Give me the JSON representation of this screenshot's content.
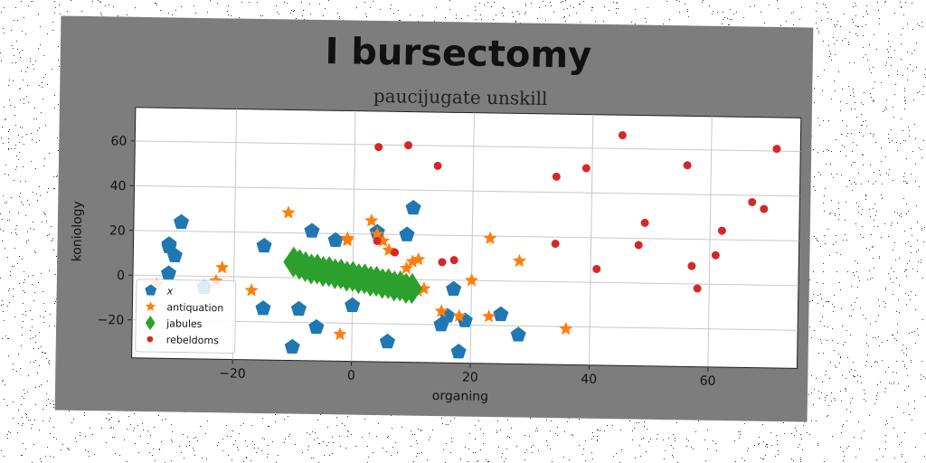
{
  "chart_data": {
    "type": "scatter",
    "title": "I bursectomy",
    "subtitle": "paucijugate unskill",
    "xlabel": "organing",
    "ylabel": "koniology",
    "xlim": [
      -37,
      75
    ],
    "ylim": [
      -37,
      75
    ],
    "xticks": [
      -20,
      0,
      20,
      40,
      60
    ],
    "yticks": [
      -20,
      0,
      20,
      40,
      60
    ],
    "grid": true,
    "legend": "lower-left",
    "series": [
      {
        "name": "x",
        "marker": "pentagon",
        "color": "#1f77b4",
        "points": [
          [
            -29,
            24
          ],
          [
            -31,
            14
          ],
          [
            -31,
            13
          ],
          [
            -30,
            9
          ],
          [
            -31,
            1
          ],
          [
            -25,
            -5
          ],
          [
            -15,
            14
          ],
          [
            -7,
            21
          ],
          [
            -3,
            17
          ],
          [
            4,
            21
          ],
          [
            10,
            32
          ],
          [
            9,
            20
          ],
          [
            -15,
            -14
          ],
          [
            -9,
            -14
          ],
          [
            -6,
            -22
          ],
          [
            0,
            -12
          ],
          [
            6,
            -28
          ],
          [
            -10,
            -31
          ],
          [
            15,
            -20
          ],
          [
            17,
            -4
          ],
          [
            16,
            -16
          ],
          [
            19,
            -18
          ],
          [
            25,
            -15
          ],
          [
            28,
            -24
          ],
          [
            18,
            -32
          ]
        ]
      },
      {
        "name": "antiquation",
        "marker": "star",
        "color": "#ff7f0e",
        "points": [
          [
            -11,
            29
          ],
          [
            -1,
            18
          ],
          [
            -1,
            17
          ],
          [
            3,
            26
          ],
          [
            4,
            20
          ],
          [
            5,
            17
          ],
          [
            6,
            13
          ],
          [
            10,
            8
          ],
          [
            9,
            5
          ],
          [
            11,
            9
          ],
          [
            12,
            -4
          ],
          [
            8,
            1
          ],
          [
            11,
            -5
          ],
          [
            15,
            -14
          ],
          [
            18,
            -16
          ],
          [
            -2,
            -25
          ],
          [
            -22,
            4
          ],
          [
            -17,
            -6
          ],
          [
            -23,
            -2
          ],
          [
            23,
            19
          ],
          [
            28,
            9
          ],
          [
            20,
            0
          ],
          [
            23,
            -16
          ],
          [
            36,
            -21
          ],
          [
            -33,
            -4
          ]
        ]
      },
      {
        "name": "jabules",
        "marker": "diamond",
        "color": "#2ca02c",
        "points": [
          [
            -10,
            7
          ],
          [
            -9,
            6
          ],
          [
            -8,
            5
          ],
          [
            -7,
            4
          ],
          [
            -6,
            4
          ],
          [
            -5,
            3
          ],
          [
            -4,
            3
          ],
          [
            -3,
            2
          ],
          [
            -2,
            2
          ],
          [
            -1,
            1
          ],
          [
            0,
            1
          ],
          [
            1,
            0
          ],
          [
            2,
            0
          ],
          [
            3,
            -1
          ],
          [
            4,
            -1
          ],
          [
            5,
            -2
          ],
          [
            6,
            -2
          ],
          [
            7,
            -3
          ],
          [
            8,
            -3
          ],
          [
            9,
            -4
          ],
          [
            10,
            -4
          ]
        ]
      },
      {
        "name": "rebeldoms",
        "marker": "circle",
        "color": "#d62728",
        "points": [
          [
            4,
            59
          ],
          [
            9,
            60
          ],
          [
            14,
            51
          ],
          [
            7,
            12
          ],
          [
            4,
            17
          ],
          [
            15,
            8
          ],
          [
            17,
            9
          ],
          [
            34,
            47
          ],
          [
            39,
            51
          ],
          [
            34,
            17
          ],
          [
            41,
            6
          ],
          [
            45,
            66
          ],
          [
            49,
            27
          ],
          [
            48,
            17
          ],
          [
            56,
            53
          ],
          [
            57,
            8
          ],
          [
            58,
            -2
          ],
          [
            61,
            13
          ],
          [
            62,
            24
          ],
          [
            67,
            37
          ],
          [
            69,
            34
          ],
          [
            71,
            61
          ]
        ]
      }
    ]
  }
}
